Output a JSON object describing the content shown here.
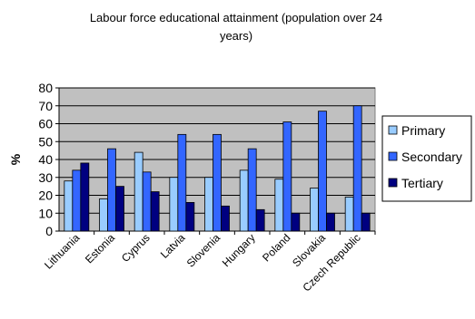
{
  "chart_data": {
    "type": "bar",
    "title_line1": "Labour force educational attainment  (population over 24",
    "title_line2": "years)",
    "ylabel": "%",
    "ylim": [
      0,
      80
    ],
    "yticks": [
      0,
      10,
      20,
      30,
      40,
      50,
      60,
      70,
      80
    ],
    "grid": true,
    "legend_position": "right",
    "categories": [
      "Lithuania",
      "Estonia",
      "Cyprus",
      "Latvia",
      "Slovenia",
      "Hungary",
      "Poland",
      "Slovakia",
      "Czech Republic"
    ],
    "series": [
      {
        "name": "Primary",
        "color": "#99CCFF",
        "values": [
          28,
          18,
          44,
          30,
          30,
          34,
          29,
          24,
          19
        ]
      },
      {
        "name": "Secondary",
        "color": "#3366FF",
        "values": [
          34,
          46,
          33,
          54,
          54,
          46,
          61,
          67,
          70
        ]
      },
      {
        "name": "Tertiary",
        "color": "#000080",
        "values": [
          38,
          25,
          22,
          16,
          14,
          12,
          10,
          10,
          10
        ]
      }
    ],
    "plot_background": "#C0C0C0"
  }
}
